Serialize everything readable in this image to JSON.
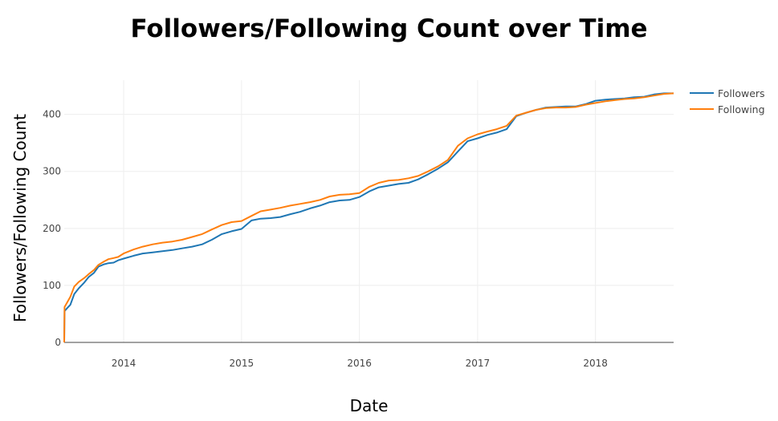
{
  "chart_data": {
    "type": "line",
    "title": "Followers/Following Count over Time",
    "xlabel": "Date",
    "ylabel": "Followers/Following Count",
    "x_ticks": [
      "2014",
      "2015",
      "2016",
      "2017",
      "2018"
    ],
    "y_ticks": [
      0,
      100,
      200,
      300,
      400
    ],
    "xlim": [
      "2013-07-01",
      "2018-08-31"
    ],
    "ylim": [
      0,
      460
    ],
    "grid": true,
    "legend_position": "top-right",
    "series": [
      {
        "name": "Followers",
        "color": "#1f77b4",
        "x": [
          "2013-07-01",
          "2013-07-02",
          "2013-07-10",
          "2013-07-20",
          "2013-08-01",
          "2013-08-15",
          "2013-09-01",
          "2013-09-15",
          "2013-10-01",
          "2013-10-15",
          "2013-11-01",
          "2013-11-15",
          "2013-12-01",
          "2013-12-15",
          "2014-01-01",
          "2014-02-01",
          "2014-03-01",
          "2014-04-01",
          "2014-05-01",
          "2014-06-01",
          "2014-07-01",
          "2014-08-01",
          "2014-09-01",
          "2014-10-01",
          "2014-11-01",
          "2014-12-01",
          "2015-01-01",
          "2015-02-01",
          "2015-03-01",
          "2015-04-01",
          "2015-05-01",
          "2015-06-01",
          "2015-07-01",
          "2015-08-01",
          "2015-09-01",
          "2015-10-01",
          "2015-11-01",
          "2015-12-01",
          "2016-01-01",
          "2016-02-01",
          "2016-03-01",
          "2016-04-01",
          "2016-05-01",
          "2016-06-01",
          "2016-07-01",
          "2016-08-01",
          "2016-09-01",
          "2016-10-01",
          "2016-11-01",
          "2016-12-01",
          "2017-01-01",
          "2017-02-01",
          "2017-03-01",
          "2017-04-01",
          "2017-05-01",
          "2017-06-01",
          "2017-07-01",
          "2017-08-01",
          "2017-09-01",
          "2017-10-01",
          "2017-11-01",
          "2017-12-01",
          "2018-01-01",
          "2018-02-01",
          "2018-03-01",
          "2018-04-01",
          "2018-05-01",
          "2018-06-01",
          "2018-07-01",
          "2018-08-01",
          "2018-08-31"
        ],
        "values": [
          0,
          55,
          60,
          66,
          85,
          95,
          105,
          115,
          122,
          133,
          137,
          139,
          140,
          144,
          147,
          152,
          156,
          158,
          160,
          162,
          165,
          168,
          172,
          180,
          190,
          195,
          199,
          214,
          217,
          218,
          220,
          225,
          229,
          235,
          240,
          246,
          249,
          250,
          255,
          265,
          272,
          275,
          278,
          280,
          286,
          295,
          305,
          316,
          335,
          353,
          358,
          364,
          368,
          374,
          397,
          403,
          408,
          412,
          413,
          414,
          414,
          418,
          424,
          426,
          427,
          428,
          430,
          431,
          435,
          437,
          437
        ]
      },
      {
        "name": "Following",
        "color": "#ff7f0e",
        "x": [
          "2013-07-01",
          "2013-07-02",
          "2013-07-10",
          "2013-07-20",
          "2013-08-01",
          "2013-08-15",
          "2013-09-01",
          "2013-09-15",
          "2013-10-01",
          "2013-10-15",
          "2013-11-01",
          "2013-11-15",
          "2013-12-01",
          "2013-12-15",
          "2014-01-01",
          "2014-02-01",
          "2014-03-01",
          "2014-04-01",
          "2014-05-01",
          "2014-06-01",
          "2014-07-01",
          "2014-08-01",
          "2014-09-01",
          "2014-10-01",
          "2014-11-01",
          "2014-12-01",
          "2015-01-01",
          "2015-02-01",
          "2015-03-01",
          "2015-04-01",
          "2015-05-01",
          "2015-06-01",
          "2015-07-01",
          "2015-08-01",
          "2015-09-01",
          "2015-10-01",
          "2015-11-01",
          "2015-12-01",
          "2016-01-01",
          "2016-02-01",
          "2016-03-01",
          "2016-04-01",
          "2016-05-01",
          "2016-06-01",
          "2016-07-01",
          "2016-08-01",
          "2016-09-01",
          "2016-10-01",
          "2016-11-01",
          "2016-12-01",
          "2017-01-01",
          "2017-02-01",
          "2017-03-01",
          "2017-04-01",
          "2017-05-01",
          "2017-06-01",
          "2017-07-01",
          "2017-08-01",
          "2017-09-01",
          "2017-10-01",
          "2017-11-01",
          "2017-12-01",
          "2018-01-01",
          "2018-02-01",
          "2018-03-01",
          "2018-04-01",
          "2018-05-01",
          "2018-06-01",
          "2018-07-01",
          "2018-08-01",
          "2018-08-31"
        ],
        "values": [
          0,
          62,
          70,
          80,
          98,
          106,
          113,
          120,
          127,
          136,
          142,
          146,
          148,
          150,
          156,
          163,
          168,
          172,
          175,
          177,
          180,
          185,
          190,
          198,
          206,
          211,
          213,
          222,
          230,
          233,
          236,
          240,
          243,
          246,
          250,
          256,
          259,
          260,
          262,
          273,
          280,
          284,
          285,
          288,
          292,
          300,
          309,
          320,
          345,
          358,
          365,
          370,
          374,
          380,
          398,
          403,
          408,
          411,
          412,
          412,
          413,
          417,
          420,
          423,
          425,
          427,
          428,
          430,
          433,
          436,
          437
        ]
      }
    ]
  }
}
